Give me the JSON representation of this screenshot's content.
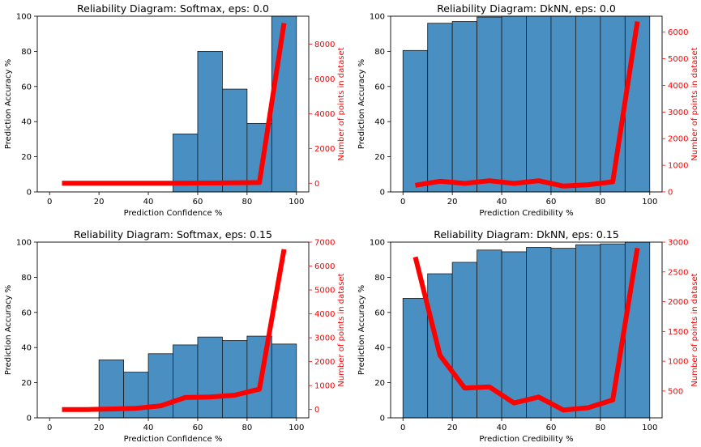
{
  "chart_data": [
    {
      "type": "bar",
      "title": "Reliability Diagram: Softmax, eps: 0.0",
      "xlabel": "Prediction Confidence %",
      "ylabel": "Prediction Accuracy %",
      "y2label": "Number of points in dataset",
      "xlim": [
        -5,
        105
      ],
      "ylim": [
        0,
        100
      ],
      "y2lim": [
        -500,
        9600
      ],
      "xticks": [
        0,
        20,
        40,
        60,
        80,
        100
      ],
      "yticks": [
        0,
        20,
        40,
        60,
        80,
        100
      ],
      "y2ticks": [
        0,
        2000,
        4000,
        6000,
        8000
      ],
      "bin_edges": [
        0,
        10,
        20,
        30,
        40,
        50,
        60,
        70,
        80,
        90,
        100
      ],
      "accuracy": [
        null,
        null,
        null,
        null,
        null,
        33,
        80,
        58.5,
        39,
        100
      ],
      "count_x": [
        5,
        15,
        25,
        35,
        45,
        55,
        65,
        75,
        85,
        95
      ],
      "counts": [
        0,
        0,
        0,
        0,
        0,
        0,
        10,
        20,
        40,
        9200
      ],
      "bar_color": "#4a8fc2",
      "line_color": "#ff0000"
    },
    {
      "type": "bar",
      "title": "Reliability Diagram: DkNN, eps: 0.0",
      "xlabel": "Prediction Credibility %",
      "ylabel": "Prediction Accuracy %",
      "y2label": "Number of points in dataset",
      "xlim": [
        -5,
        105
      ],
      "ylim": [
        0,
        100
      ],
      "y2lim": [
        0,
        6600
      ],
      "xticks": [
        0,
        20,
        40,
        60,
        80,
        100
      ],
      "yticks": [
        0,
        20,
        40,
        60,
        80,
        100
      ],
      "y2ticks": [
        0,
        1000,
        2000,
        3000,
        4000,
        5000,
        6000
      ],
      "bin_edges": [
        0,
        10,
        20,
        30,
        40,
        50,
        60,
        70,
        80,
        90,
        100
      ],
      "accuracy": [
        80.5,
        96,
        97,
        99.5,
        100,
        100,
        100,
        100,
        100,
        100
      ],
      "count_x": [
        5,
        15,
        25,
        35,
        45,
        55,
        65,
        75,
        85,
        95
      ],
      "counts": [
        250,
        400,
        320,
        420,
        320,
        420,
        220,
        270,
        380,
        6400
      ],
      "bar_color": "#4a8fc2",
      "line_color": "#ff0000"
    },
    {
      "type": "bar",
      "title": "Reliability Diagram: Softmax, eps: 0.15",
      "xlabel": "Prediction Confidence %",
      "ylabel": "Prediction Accuracy %",
      "y2label": "Number of points in dataset",
      "xlim": [
        -5,
        105
      ],
      "ylim": [
        0,
        100
      ],
      "y2lim": [
        -350,
        7000
      ],
      "xticks": [
        0,
        20,
        40,
        60,
        80,
        100
      ],
      "yticks": [
        0,
        20,
        40,
        60,
        80,
        100
      ],
      "y2ticks": [
        0,
        1000,
        2000,
        3000,
        4000,
        5000,
        6000,
        7000
      ],
      "bin_edges": [
        0,
        10,
        20,
        30,
        40,
        50,
        60,
        70,
        80,
        90,
        100
      ],
      "accuracy": [
        null,
        null,
        33,
        26,
        36.5,
        41.5,
        46,
        44,
        46.5,
        42
      ],
      "count_x": [
        5,
        15,
        25,
        35,
        45,
        55,
        65,
        75,
        85,
        95
      ],
      "counts": [
        0,
        0,
        20,
        50,
        150,
        500,
        520,
        600,
        850,
        6700
      ],
      "bar_color": "#4a8fc2",
      "line_color": "#ff0000"
    },
    {
      "type": "bar",
      "title": "Reliability Diagram: DkNN, eps: 0.15",
      "xlabel": "Prediction Credibility %",
      "ylabel": "Prediction Accuracy %",
      "y2label": "Number of points in dataset",
      "xlim": [
        -5,
        105
      ],
      "ylim": [
        0,
        100
      ],
      "y2lim": [
        50,
        3000
      ],
      "xticks": [
        0,
        20,
        40,
        60,
        80,
        100
      ],
      "yticks": [
        0,
        20,
        40,
        60,
        80,
        100
      ],
      "y2ticks": [
        500,
        1000,
        1500,
        2000,
        2500,
        3000
      ],
      "bin_edges": [
        0,
        10,
        20,
        30,
        40,
        50,
        60,
        70,
        80,
        90,
        100
      ],
      "accuracy": [
        68,
        82,
        88.5,
        95.5,
        94.5,
        97,
        96.5,
        98.5,
        99,
        100
      ],
      "count_x": [
        5,
        15,
        25,
        35,
        45,
        55,
        65,
        75,
        85,
        95
      ],
      "counts": [
        2750,
        1100,
        550,
        570,
        300,
        400,
        180,
        220,
        350,
        2900
      ],
      "bar_color": "#4a8fc2",
      "line_color": "#ff0000"
    }
  ]
}
